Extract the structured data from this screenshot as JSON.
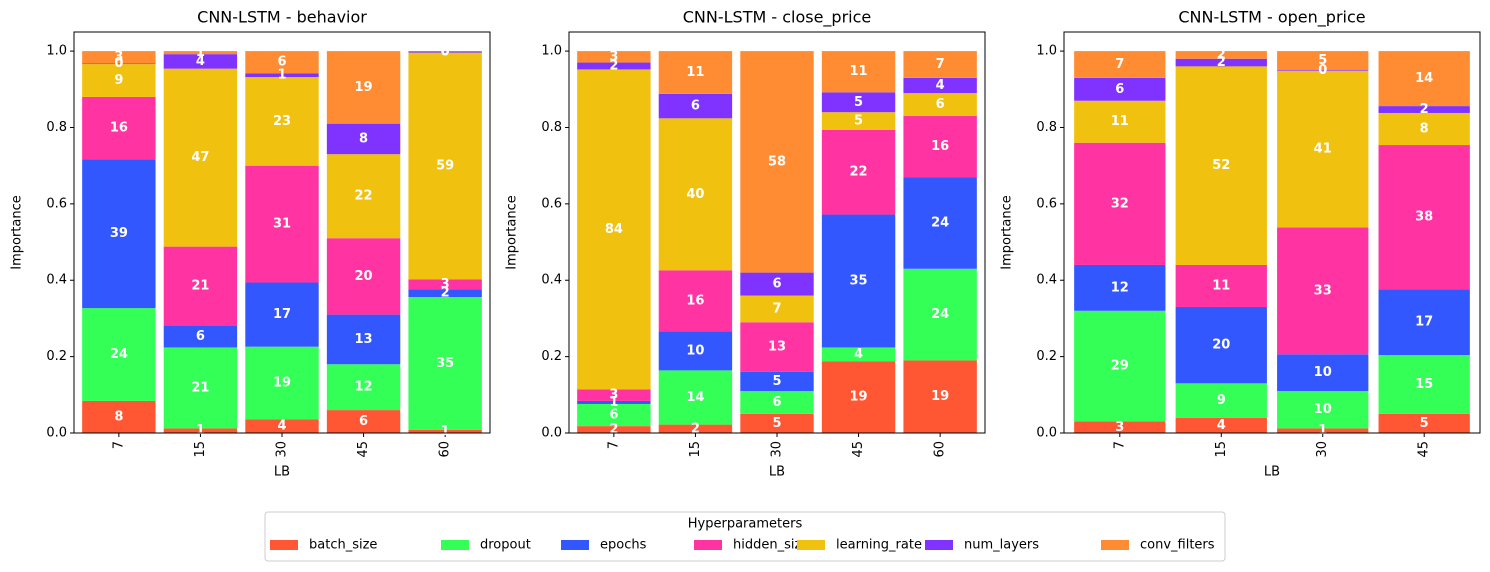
{
  "chart_data": [
    {
      "type": "bar",
      "stacked": true,
      "title": "CNN-LSTM - behavior",
      "x_label": "LB",
      "y_label": "Importance",
      "categories": [
        "7",
        "15",
        "30",
        "45",
        "60"
      ],
      "ylim": [
        0,
        1.05
      ],
      "yticks": [
        {
          "value": 0,
          "label": "0.0"
        },
        0.2,
        0.4,
        0.6,
        0.8,
        {
          "value": 1,
          "label": "1.0"
        }
      ],
      "series": [
        {
          "values": [
            0.084,
            0.012,
            0.036,
            0.06,
            0.008
          ],
          "value_labels": [
            "8",
            "1",
            "4",
            "6",
            "1"
          ]
        },
        {
          "values": [
            0.243,
            0.212,
            0.19,
            0.12,
            0.348
          ],
          "value_labels": [
            "24",
            "21",
            "19",
            "12",
            "35"
          ]
        },
        {
          "values": [
            0.39,
            0.058,
            0.168,
            0.13,
            0.02
          ],
          "value_labels": [
            "39",
            "6",
            "17",
            "13",
            "2"
          ]
        },
        {
          "values": [
            0.163,
            0.206,
            0.306,
            0.2,
            0.026
          ],
          "value_labels": [
            "16",
            "21",
            "31",
            "20",
            "3"
          ]
        },
        {
          "values": [
            0.086,
            0.466,
            0.232,
            0.22,
            0.594
          ],
          "value_labels": [
            "9",
            "47",
            "23",
            "22",
            "59"
          ]
        },
        {
          "values": [
            0.002,
            0.038,
            0.01,
            0.08,
            0.003
          ],
          "value_labels": [
            "0",
            "4",
            "1",
            "8",
            "0"
          ]
        },
        {
          "values": [
            0.032,
            0.008,
            0.058,
            0.19,
            0.001
          ],
          "value_labels": [
            "3",
            "1",
            "6",
            "19",
            "0"
          ]
        }
      ]
    },
    {
      "type": "bar",
      "stacked": true,
      "title": "CNN-LSTM - close_price",
      "x_label": "LB",
      "y_label": "Importance",
      "categories": [
        "7",
        "15",
        "30",
        "45",
        "60"
      ],
      "ylim": [
        0,
        1.05
      ],
      "yticks": [
        {
          "value": 0,
          "label": "0.0"
        },
        0.2,
        0.4,
        0.6,
        0.8,
        {
          "value": 1,
          "label": "1.0"
        }
      ],
      "series": [
        {
          "values": [
            0.018,
            0.022,
            0.05,
            0.188,
            0.19
          ],
          "value_labels": [
            "2",
            "2",
            "5",
            "19",
            "19"
          ]
        },
        {
          "values": [
            0.058,
            0.142,
            0.06,
            0.036,
            0.24
          ],
          "value_labels": [
            "6",
            "14",
            "6",
            "4",
            "24"
          ]
        },
        {
          "values": [
            0.008,
            0.102,
            0.05,
            0.348,
            0.24
          ],
          "value_labels": [
            "1",
            "10",
            "5",
            "35",
            "24"
          ]
        },
        {
          "values": [
            0.03,
            0.16,
            0.13,
            0.222,
            0.16
          ],
          "value_labels": [
            "3",
            "16",
            "13",
            "22",
            "16"
          ]
        },
        {
          "values": [
            0.838,
            0.398,
            0.07,
            0.046,
            0.06
          ],
          "value_labels": [
            "84",
            "40",
            "7",
            "5",
            "6"
          ]
        },
        {
          "values": [
            0.018,
            0.064,
            0.06,
            0.052,
            0.04
          ],
          "value_labels": [
            "2",
            "6",
            "6",
            "5",
            "4"
          ]
        },
        {
          "values": [
            0.03,
            0.112,
            0.58,
            0.108,
            0.07
          ],
          "value_labels": [
            "3",
            "11",
            "58",
            "11",
            "7"
          ]
        }
      ]
    },
    {
      "type": "bar",
      "stacked": true,
      "title": "CNN-LSTM - open_price",
      "x_label": "LB",
      "y_label": "Importance",
      "categories": [
        "7",
        "15",
        "30",
        "45"
      ],
      "ylim": [
        0,
        1.05
      ],
      "yticks": [
        {
          "value": 0,
          "label": "0.0"
        },
        0.2,
        0.4,
        0.6,
        0.8,
        {
          "value": 1,
          "label": "1.0"
        }
      ],
      "series": [
        {
          "values": [
            0.03,
            0.04,
            0.012,
            0.05
          ],
          "value_labels": [
            "3",
            "4",
            "1",
            "5"
          ]
        },
        {
          "values": [
            0.29,
            0.09,
            0.098,
            0.154
          ],
          "value_labels": [
            "29",
            "9",
            "10",
            "15"
          ]
        },
        {
          "values": [
            0.12,
            0.2,
            0.096,
            0.172
          ],
          "value_labels": [
            "12",
            "20",
            "10",
            "17"
          ]
        },
        {
          "values": [
            0.32,
            0.11,
            0.332,
            0.378
          ],
          "value_labels": [
            "32",
            "11",
            "33",
            "38"
          ]
        },
        {
          "values": [
            0.11,
            0.52,
            0.41,
            0.084
          ],
          "value_labels": [
            "11",
            "52",
            "41",
            "8"
          ]
        },
        {
          "values": [
            0.06,
            0.02,
            0.002,
            0.018
          ],
          "value_labels": [
            "6",
            "2",
            "0",
            "2"
          ]
        },
        {
          "values": [
            0.07,
            0.02,
            0.05,
            0.144
          ],
          "value_labels": [
            "7",
            "2",
            "5",
            "14"
          ]
        }
      ]
    }
  ],
  "legend": {
    "title": "Hyperparameters",
    "position": "lower center",
    "series": [
      {
        "name": "batch_size",
        "color": "#ff5733"
      },
      {
        "name": "dropout",
        "color": "#33ff57"
      },
      {
        "name": "epochs",
        "color": "#3357ff"
      },
      {
        "name": "hidden_size",
        "color": "#ff33a1"
      },
      {
        "name": "learning_rate",
        "color": "#f1c10f"
      },
      {
        "name": "num_layers",
        "color": "#8033ff"
      },
      {
        "name": "conv_filters",
        "color": "#ff8c33"
      }
    ]
  }
}
